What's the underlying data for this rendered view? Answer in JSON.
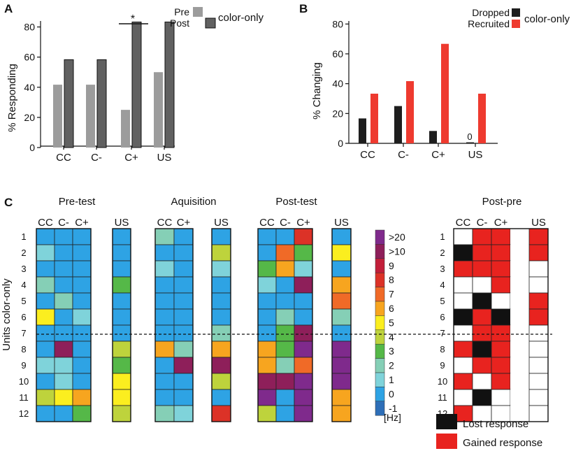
{
  "panel_letters": [
    "A",
    "B",
    "C"
  ],
  "colors": {
    "pre": "#9c9c9c",
    "post": "#616161",
    "dropped": "#1e1e1e",
    "recruited": "#ee3a2f",
    "lost": "#111111",
    "gained": "#e8231f",
    "unchanged": "#ffffff"
  },
  "heat_palette": {
    "-1": "#2e6fb8",
    "0": "#2ea3e4",
    "1": "#7fd3da",
    "2": "#85cfb6",
    "3": "#55b848",
    "4": "#bed33c",
    "5": "#fbee1f",
    "6": "#f7a51f",
    "7": "#f06a27",
    "8": "#dc3227",
    "9": "#c21f3a",
    "10": "#8e1f5a",
    "20": "#7f2a8c"
  },
  "chart_data": [
    {
      "id": "A",
      "type": "bar",
      "categories": [
        "CC",
        "C-",
        "C+",
        "US"
      ],
      "series": [
        {
          "name": "Pre",
          "values": [
            41.7,
            41.7,
            25.0,
            50.0
          ]
        },
        {
          "name": "Post",
          "values": [
            58.3,
            58.3,
            83.3,
            83.3
          ]
        }
      ],
      "legend_title": "color-only",
      "ylabel": "% Responding",
      "ylim": [
        0,
        90
      ],
      "yticks": [
        0,
        20,
        40,
        60,
        80
      ],
      "significance": {
        "category": "C+",
        "label": "*"
      }
    },
    {
      "id": "B",
      "type": "bar",
      "categories": [
        "CC",
        "C-",
        "C+",
        "US"
      ],
      "series": [
        {
          "name": "Dropped",
          "values": [
            16.7,
            25.0,
            8.3,
            0
          ]
        },
        {
          "name": "Recruited",
          "values": [
            33.3,
            41.7,
            66.7,
            33.3
          ]
        }
      ],
      "legend_title": "color-only",
      "ylabel": "% Changing",
      "ylim": [
        0,
        90
      ],
      "yticks": [
        0,
        20,
        40,
        60,
        80
      ],
      "zero_label": {
        "category": "US",
        "text": "0"
      }
    },
    {
      "id": "C",
      "type": "heatmap",
      "ylabel": "Units color-only",
      "units": [
        "1",
        "2",
        "3",
        "4",
        "5",
        "6",
        "7",
        "8",
        "9",
        "10",
        "11",
        "12"
      ],
      "unit_separator_after": 7,
      "groups": [
        {
          "title": "Pre-test",
          "blocks": [
            {
              "columns": [
                "CC",
                "C-",
                "C+"
              ],
              "values": [
                [
                  0,
                  0,
                  0
                ],
                [
                  1,
                  0,
                  0
                ],
                [
                  0,
                  0,
                  0
                ],
                [
                  2,
                  0,
                  0
                ],
                [
                  0,
                  2,
                  0
                ],
                [
                  5,
                  0,
                  1
                ],
                [
                  0,
                  0,
                  0
                ],
                [
                  0,
                  10,
                  0
                ],
                [
                  1,
                  1,
                  0
                ],
                [
                  0,
                  1,
                  0
                ],
                [
                  4,
                  5,
                  6
                ],
                [
                  0,
                  0,
                  3
                ]
              ]
            },
            {
              "columns": [
                "US"
              ],
              "values": [
                [
                  0
                ],
                [
                  0
                ],
                [
                  0
                ],
                [
                  3
                ],
                [
                  0
                ],
                [
                  0
                ],
                [
                  0
                ],
                [
                  4
                ],
                [
                  3
                ],
                [
                  5
                ],
                [
                  5
                ],
                [
                  4
                ]
              ]
            }
          ]
        },
        {
          "title": "Aquisition",
          "blocks": [
            {
              "columns": [
                "CC",
                "C+"
              ],
              "values": [
                [
                  2,
                  0
                ],
                [
                  0,
                  0
                ],
                [
                  1,
                  0
                ],
                [
                  0,
                  0
                ],
                [
                  0,
                  0
                ],
                [
                  0,
                  0
                ],
                [
                  0,
                  0
                ],
                [
                  6,
                  2
                ],
                [
                  0,
                  10
                ],
                [
                  0,
                  0
                ],
                [
                  0,
                  0
                ],
                [
                  2,
                  1
                ]
              ]
            },
            {
              "columns": [
                "US"
              ],
              "values": [
                [
                  0
                ],
                [
                  4
                ],
                [
                  1
                ],
                [
                  0
                ],
                [
                  0
                ],
                [
                  0
                ],
                [
                  2
                ],
                [
                  6
                ],
                [
                  10
                ],
                [
                  4
                ],
                [
                  0
                ],
                [
                  8
                ]
              ]
            }
          ]
        },
        {
          "title": "Post-test",
          "blocks": [
            {
              "columns": [
                "CC",
                "C-",
                "C+"
              ],
              "values": [
                [
                  0,
                  0,
                  8
                ],
                [
                  0,
                  7,
                  3
                ],
                [
                  3,
                  6,
                  1
                ],
                [
                  1,
                  0,
                  10
                ],
                [
                  0,
                  0,
                  0
                ],
                [
                  0,
                  2,
                  0
                ],
                [
                  0,
                  3,
                  10
                ],
                [
                  6,
                  3,
                  20
                ],
                [
                  6,
                  2,
                  7
                ],
                [
                  10,
                  10,
                  20
                ],
                [
                  20,
                  0,
                  20
                ],
                [
                  4,
                  0,
                  20
                ]
              ]
            },
            {
              "columns": [
                "US"
              ],
              "values": [
                [
                  0
                ],
                [
                  5
                ],
                [
                  0
                ],
                [
                  6
                ],
                [
                  7
                ],
                [
                  2
                ],
                [
                  0
                ],
                [
                  20
                ],
                [
                  20
                ],
                [
                  20
                ],
                [
                  6
                ],
                [
                  6
                ]
              ]
            }
          ]
        }
      ],
      "colorbar": {
        "labels": [
          ">20",
          ">10",
          "9",
          "8",
          "7",
          "6",
          "5",
          "4",
          "3",
          "2",
          "1",
          "0",
          "-1"
        ],
        "levels": [
          20,
          10,
          9,
          8,
          7,
          6,
          5,
          4,
          3,
          2,
          1,
          0,
          -1
        ],
        "unit": "[Hz]"
      },
      "post_pre": {
        "title": "Post-pre",
        "columns": [
          "CC",
          "C-",
          "C+",
          "",
          "US"
        ],
        "values": [
          [
            "none",
            "gained",
            "gained",
            "blank",
            "gained"
          ],
          [
            "lost",
            "gained",
            "gained",
            "blank",
            "gained"
          ],
          [
            "gained",
            "gained",
            "gained",
            "blank",
            "none"
          ],
          [
            "none",
            "none",
            "gained",
            "blank",
            "none"
          ],
          [
            "none",
            "lost",
            "none",
            "blank",
            "gained"
          ],
          [
            "lost",
            "gained",
            "lost",
            "blank",
            "gained"
          ],
          [
            "none",
            "gained",
            "gained",
            "blank",
            "none"
          ],
          [
            "gained",
            "lost",
            "gained",
            "blank",
            "none"
          ],
          [
            "none",
            "gained",
            "gained",
            "blank",
            "none"
          ],
          [
            "gained",
            "none",
            "gained",
            "blank",
            "none"
          ],
          [
            "none",
            "lost",
            "none",
            "blank",
            "none"
          ],
          [
            "gained",
            "none",
            "none",
            "blank",
            "none"
          ]
        ],
        "legend": [
          {
            "key": "lost",
            "label": "Lost response"
          },
          {
            "key": "gained",
            "label": "Gained response"
          }
        ]
      }
    }
  ]
}
